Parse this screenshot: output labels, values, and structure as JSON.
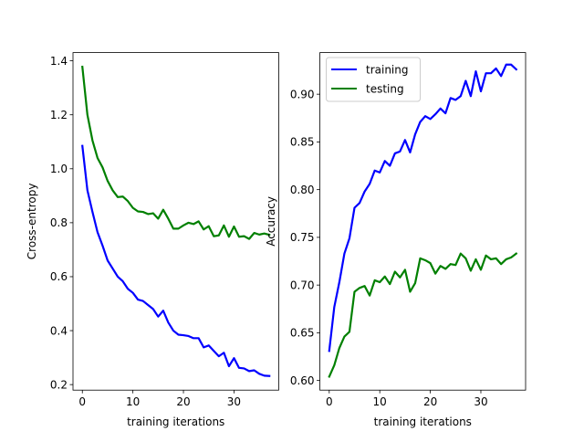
{
  "chart_data": [
    {
      "type": "line",
      "xlabel": "training iterations",
      "ylabel": "Cross-entropy",
      "xlim": [
        -1.85,
        38.85
      ],
      "ylim": [
        0.1795,
        1.4305
      ],
      "xticks": [
        0,
        10,
        20,
        30
      ],
      "yticks": [
        0.2,
        0.4,
        0.6,
        0.8,
        1.0,
        1.2,
        1.4
      ],
      "ytick_labels": [
        "0.2",
        "0.4",
        "0.6",
        "0.8",
        "1.0",
        "1.2",
        "1.4"
      ],
      "grid": false,
      "series": [
        {
          "color": "#0000ff",
          "x": [
            0,
            1,
            2,
            3,
            4,
            5,
            6,
            7,
            8,
            9,
            10,
            11,
            12,
            13,
            14,
            15,
            16,
            17,
            18,
            19,
            20,
            21,
            22,
            23,
            24,
            25,
            26,
            27,
            28,
            29,
            30,
            31,
            32,
            33,
            34,
            35,
            36,
            37
          ],
          "values": [
            1.085,
            0.92,
            0.84,
            0.765,
            0.715,
            0.66,
            0.63,
            0.6,
            0.583,
            0.555,
            0.54,
            0.515,
            0.51,
            0.495,
            0.48,
            0.452,
            0.474,
            0.43,
            0.4,
            0.385,
            0.383,
            0.38,
            0.372,
            0.372,
            0.338,
            0.345,
            0.325,
            0.305,
            0.318,
            0.268,
            0.298,
            0.262,
            0.26,
            0.25,
            0.253,
            0.24,
            0.233,
            0.232
          ]
        },
        {
          "color": "#008000",
          "x": [
            0,
            1,
            2,
            3,
            4,
            5,
            6,
            7,
            8,
            9,
            10,
            11,
            12,
            13,
            14,
            15,
            16,
            17,
            18,
            19,
            20,
            21,
            22,
            23,
            24,
            25,
            26,
            27,
            28,
            29,
            30,
            31,
            32,
            33,
            34,
            35,
            36,
            37
          ],
          "values": [
            1.378,
            1.2,
            1.105,
            1.04,
            1.005,
            0.955,
            0.92,
            0.895,
            0.897,
            0.88,
            0.855,
            0.842,
            0.84,
            0.832,
            0.835,
            0.815,
            0.848,
            0.815,
            0.778,
            0.778,
            0.79,
            0.8,
            0.795,
            0.805,
            0.775,
            0.787,
            0.75,
            0.753,
            0.79,
            0.748,
            0.786,
            0.748,
            0.75,
            0.74,
            0.762,
            0.756,
            0.76,
            0.755
          ]
        }
      ]
    },
    {
      "type": "line",
      "xlabel": "training iterations",
      "ylabel": "Accuracy",
      "xlim": [
        -1.85,
        38.85
      ],
      "ylim": [
        0.5899,
        0.9436
      ],
      "xticks": [
        0,
        10,
        20,
        30
      ],
      "yticks": [
        0.6,
        0.65,
        0.7,
        0.75,
        0.8,
        0.85,
        0.9
      ],
      "ytick_labels": [
        "0.60",
        "0.65",
        "0.70",
        "0.75",
        "0.80",
        "0.85",
        "0.90"
      ],
      "grid": false,
      "legend_position": "top-left",
      "series": [
        {
          "name": "training",
          "color": "#0000ff",
          "x": [
            0,
            1,
            2,
            3,
            4,
            5,
            6,
            7,
            8,
            9,
            10,
            11,
            12,
            13,
            14,
            15,
            16,
            17,
            18,
            19,
            20,
            21,
            22,
            23,
            24,
            25,
            26,
            27,
            28,
            29,
            30,
            31,
            32,
            33,
            34,
            35,
            36,
            37
          ],
          "values": [
            0.631,
            0.677,
            0.703,
            0.733,
            0.749,
            0.781,
            0.786,
            0.798,
            0.806,
            0.82,
            0.818,
            0.83,
            0.825,
            0.838,
            0.84,
            0.852,
            0.839,
            0.858,
            0.871,
            0.877,
            0.874,
            0.879,
            0.885,
            0.88,
            0.896,
            0.894,
            0.898,
            0.914,
            0.898,
            0.924,
            0.903,
            0.922,
            0.922,
            0.927,
            0.919,
            0.931,
            0.931,
            0.926
          ]
        },
        {
          "name": "testing",
          "color": "#008000",
          "x": [
            0,
            1,
            2,
            3,
            4,
            5,
            6,
            7,
            8,
            9,
            10,
            11,
            12,
            13,
            14,
            15,
            16,
            17,
            18,
            19,
            20,
            21,
            22,
            23,
            24,
            25,
            26,
            27,
            28,
            29,
            30,
            31,
            32,
            33,
            34,
            35,
            36,
            37
          ],
          "values": [
            0.604,
            0.616,
            0.634,
            0.646,
            0.651,
            0.693,
            0.697,
            0.699,
            0.689,
            0.705,
            0.703,
            0.709,
            0.701,
            0.714,
            0.708,
            0.716,
            0.693,
            0.702,
            0.728,
            0.726,
            0.723,
            0.712,
            0.72,
            0.717,
            0.722,
            0.721,
            0.733,
            0.728,
            0.715,
            0.727,
            0.716,
            0.731,
            0.727,
            0.728,
            0.722,
            0.727,
            0.729,
            0.733
          ]
        }
      ]
    }
  ]
}
